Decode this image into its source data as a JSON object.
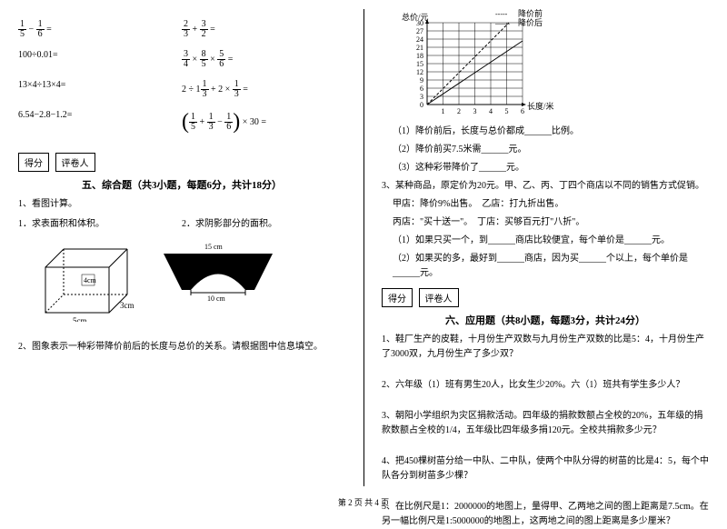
{
  "left": {
    "equations": [
      {
        "a": {
          "type": "expr",
          "html": "<span class='frac'><span class='num'>1</span><span class='den'>5</span></span> − <span class='frac'><span class='num'>1</span><span class='den'>6</span></span> ="
        },
        "b": {
          "type": "expr",
          "html": "<span class='frac'><span class='num'>2</span><span class='den'>3</span></span> + <span class='frac'><span class='num'>3</span><span class='den'>2</span></span> ="
        }
      },
      {
        "a": {
          "text": "100÷0.01="
        },
        "b": {
          "type": "expr",
          "html": "<span class='frac'><span class='num'>3</span><span class='den'>4</span></span> × <span class='frac'><span class='num'>8</span><span class='den'>5</span></span> × <span class='frac'><span class='num'>5</span><span class='den'>6</span></span> ="
        }
      },
      {
        "a": {
          "text": "13×4÷13×4="
        },
        "b": {
          "type": "expr",
          "html": "2 ÷ 1<span class='frac'><span class='num'>1</span><span class='den'>3</span></span> + 2 × <span class='frac'><span class='num'>1</span><span class='den'>3</span></span> ="
        }
      },
      {
        "a": {
          "text": "6.54−2.8−1.2="
        },
        "b": {
          "type": "expr",
          "html": "<span class='paren'>(</span><span class='frac'><span class='num'>1</span><span class='den'>5</span></span> + <span class='frac'><span class='num'>1</span><span class='den'>3</span></span> − <span class='frac'><span class='num'>1</span><span class='den'>6</span></span><span class='paren'>)</span> × 30 ="
        }
      }
    ],
    "score_label": "得分",
    "grader_label": "评卷人",
    "section5_title": "五、综合题（共3小题，每题6分，共计18分）",
    "q1": "1、看图计算。",
    "q1a": "1．求表面积和体积。",
    "q1b": "2．求阴影部分的面积。",
    "cube": {
      "w": "5cm",
      "h": "4cm",
      "d": "3cm"
    },
    "arch": {
      "top": "15 cm",
      "bottom": "10 cm"
    },
    "q2": "2、图象表示一种彩带降价前后的长度与总价的关系。请根据图中信息填空。"
  },
  "right": {
    "chart": {
      "legend_before": "降价前",
      "legend_after": "降价后",
      "y_label": "总价/元",
      "x_label": "长度/米",
      "y_ticks": [
        "30",
        "27",
        "24",
        "21",
        "18",
        "15",
        "12",
        "9",
        "6",
        "3",
        "0"
      ],
      "x_ticks": [
        "1",
        "2",
        "3",
        "4",
        "5",
        "6"
      ],
      "grid_color": "#000",
      "line_before_dash": "4,2",
      "line_after_dash": "0"
    },
    "q2_sub": [
      "（1）降价前后，长度与总价都成______比例。",
      "（2）降价前买7.5米需______元。",
      "（3）这种彩带降价了______元。"
    ],
    "q3": "3、某种商品，原定价为20元。甲、乙、丙、丁四个商店以不同的销售方式促销。",
    "q3_lines": [
      "甲店：降价9%出售。　乙店：打九折出售。",
      "丙店：\"买十送一\"。　丁店：买够百元打\"八折\"。",
      "（1）如果只买一个，到______商店比较便宜，每个单价是______元。",
      "（2）如果买的多，最好到______商店，因为买______个以上，每个单价是______元。"
    ],
    "score_label": "得分",
    "grader_label": "评卷人",
    "section6_title": "六、应用题（共8小题，每题3分，共计24分）",
    "apps": [
      "1、鞋厂生产的皮鞋，十月份生产双数与九月份生产双数的比是5：4，十月份生产了3000双，九月份生产了多少双？",
      "2、六年级（1）班有男生20人，比女生少20%。六（1）班共有学生多少人？",
      "3、朝阳小学组织为灾区捐款活动。四年级的捐款数额占全校的20%，五年级的捐款数额占全校的1/4，五年级比四年级多捐120元。全校共捐款多少元？",
      "4、把450棵树苗分给一中队、二中队，使两个中队分得的树苗的比是4：5，每个中队各分到树苗多少棵？",
      "5、在比例尺是1：2000000的地图上，量得甲、乙两地之间的图上距离是7.5cm。在另一幅比例尺是1:5000000的地图上，这两地之间的图上距离是多少厘米？"
    ]
  },
  "footer": "第 2 页 共 4 页"
}
